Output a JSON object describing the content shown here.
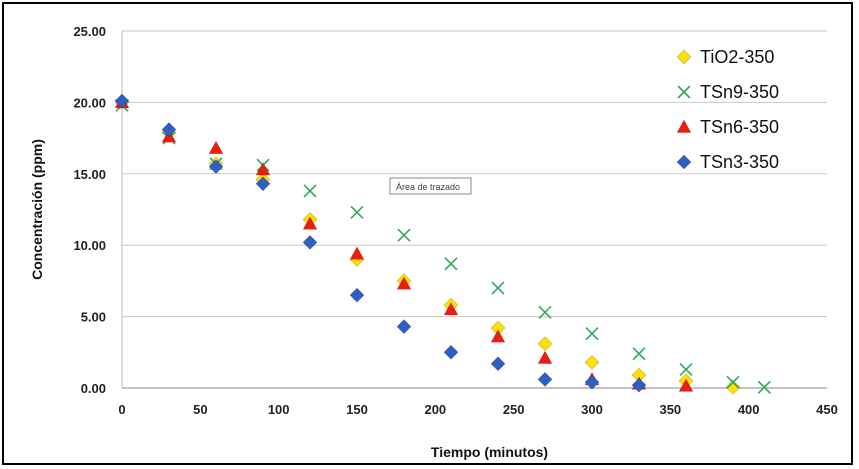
{
  "chart_data": {
    "type": "scatter",
    "title": "",
    "xlabel": "Tiempo (minutos)",
    "ylabel": "Concentración (ppm)",
    "xlim": [
      0,
      450
    ],
    "ylim": [
      0,
      25
    ],
    "xticks": [
      "0",
      "50",
      "100",
      "150",
      "200",
      "250",
      "300",
      "350",
      "400",
      "450"
    ],
    "yticks": [
      "0.00",
      "5.00",
      "10.00",
      "15.00",
      "20.00",
      "25.00"
    ],
    "grid": "horizontal",
    "legend_position": "top-right",
    "tooltip": "Área de trazado",
    "series": [
      {
        "name": "TiO2-350",
        "marker": "diamond",
        "color": "#FFE000",
        "points": [
          [
            0,
            20.0
          ],
          [
            30,
            17.9
          ],
          [
            60,
            15.7
          ],
          [
            90,
            14.6
          ],
          [
            120,
            11.8
          ],
          [
            150,
            9.0
          ],
          [
            180,
            7.5
          ],
          [
            210,
            5.8
          ],
          [
            240,
            4.2
          ],
          [
            270,
            3.1
          ],
          [
            300,
            1.8
          ],
          [
            330,
            0.9
          ],
          [
            360,
            0.5
          ],
          [
            390,
            0.05
          ]
        ]
      },
      {
        "name": "TSn9-350",
        "marker": "x",
        "color": "#2EAA5C",
        "points": [
          [
            0,
            19.8
          ],
          [
            30,
            17.5
          ],
          [
            60,
            15.7
          ],
          [
            90,
            15.6
          ],
          [
            120,
            13.8
          ],
          [
            150,
            12.3
          ],
          [
            180,
            10.7
          ],
          [
            210,
            8.7
          ],
          [
            240,
            7.0
          ],
          [
            270,
            5.3
          ],
          [
            300,
            3.8
          ],
          [
            330,
            2.4
          ],
          [
            360,
            1.3
          ],
          [
            390,
            0.4
          ],
          [
            410,
            0.05
          ]
        ]
      },
      {
        "name": "TSn6-350",
        "marker": "triangle",
        "color": "#E81E0E",
        "points": [
          [
            0,
            20.0
          ],
          [
            30,
            17.6
          ],
          [
            60,
            16.8
          ],
          [
            90,
            15.3
          ],
          [
            120,
            11.5
          ],
          [
            150,
            9.4
          ],
          [
            180,
            7.3
          ],
          [
            210,
            5.5
          ],
          [
            240,
            3.6
          ],
          [
            270,
            2.1
          ],
          [
            300,
            0.6
          ],
          [
            330,
            0.3
          ],
          [
            360,
            0.15
          ]
        ]
      },
      {
        "name": "TSn3-350",
        "marker": "diamond",
        "color": "#2F5FC4",
        "points": [
          [
            0,
            20.1
          ],
          [
            30,
            18.1
          ],
          [
            60,
            15.5
          ],
          [
            90,
            14.3
          ],
          [
            120,
            10.2
          ],
          [
            150,
            6.5
          ],
          [
            180,
            4.3
          ],
          [
            210,
            2.5
          ],
          [
            240,
            1.7
          ],
          [
            270,
            0.6
          ],
          [
            300,
            0.4
          ],
          [
            330,
            0.2
          ]
        ]
      }
    ]
  }
}
